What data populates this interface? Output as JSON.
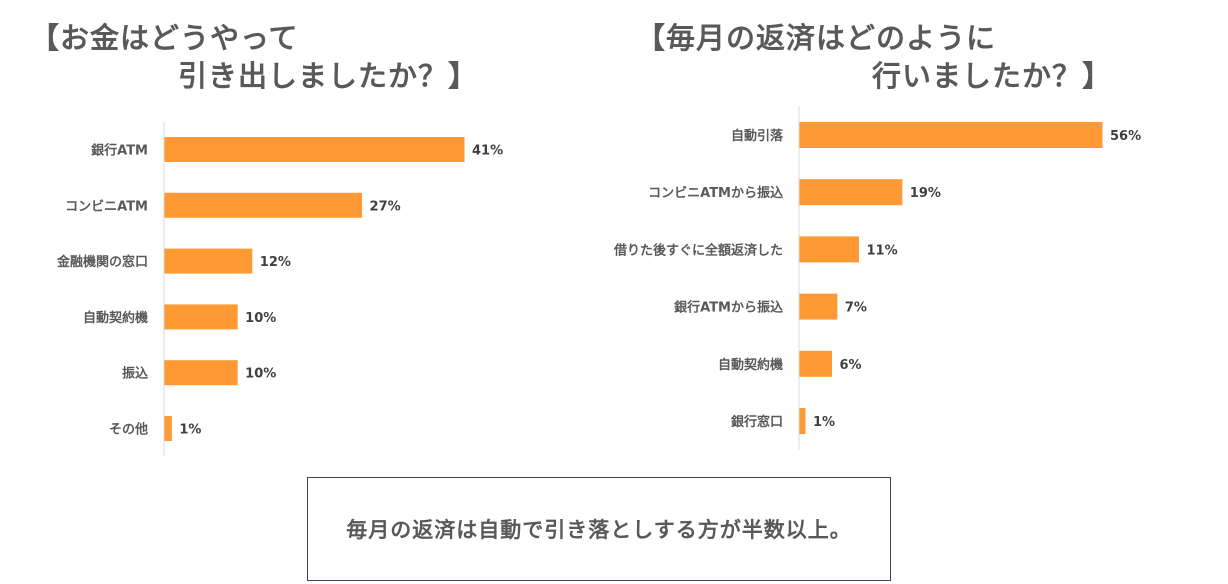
{
  "chart_data": [
    {
      "type": "bar",
      "orientation": "horizontal",
      "title_line1": "【お金はどうやって",
      "title_line2": "引き出しましたか？】",
      "categories": [
        "銀行ATM",
        "コンビニATM",
        "金融機関の窓口",
        "自動契約機",
        "振込",
        "その他"
      ],
      "values": [
        41,
        27,
        12,
        10,
        10,
        1
      ],
      "value_labels": [
        "41%",
        "27%",
        "12%",
        "10%",
        "10%",
        "1%"
      ],
      "bar_color": "#ff9933",
      "xlim": [
        0,
        100
      ]
    },
    {
      "type": "bar",
      "orientation": "horizontal",
      "title_line1": "【毎月の返済はどのように",
      "title_line2": "行いましたか？】",
      "categories": [
        "自動引落",
        "コンビニATMから振込",
        "借りた後すぐに全額返済した",
        "銀行ATMから振込",
        "自動契約機",
        "銀行窓口"
      ],
      "values": [
        56,
        19,
        11,
        7,
        6,
        1
      ],
      "value_labels": [
        "56%",
        "19%",
        "11%",
        "7%",
        "6%",
        "1%"
      ],
      "bar_color": "#ff9933",
      "xlim": [
        0,
        100
      ]
    }
  ],
  "note": "毎月の返済は自動で引き落としする方が半数以上。"
}
